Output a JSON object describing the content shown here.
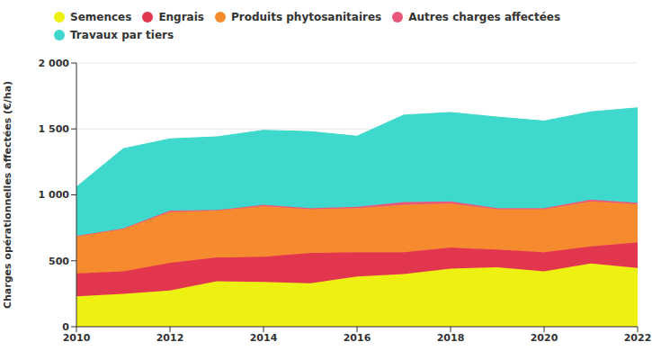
{
  "chart_data": {
    "type": "area",
    "stacked": true,
    "legend": "top",
    "grid": true,
    "y_label": "Charges opérationnelles affectées (€/ha)",
    "x": [
      2010,
      2011,
      2012,
      2013,
      2014,
      2015,
      2016,
      2017,
      2018,
      2019,
      2020,
      2021,
      2022
    ],
    "xlim": [
      2010,
      2022
    ],
    "xticks": [
      2010,
      2012,
      2014,
      2016,
      2018,
      2020,
      2022
    ],
    "ylim": [
      0,
      2000
    ],
    "yticks": [
      0,
      500,
      {
        "value": 1000,
        "label": "1 000"
      },
      {
        "value": 1500,
        "label": "1 500"
      },
      {
        "value": 2000,
        "label": "2 000"
      }
    ],
    "series": [
      {
        "name": "Semences",
        "color": "#eef012",
        "values": [
          230,
          250,
          275,
          345,
          340,
          330,
          380,
          400,
          440,
          450,
          420,
          480,
          445
        ]
      },
      {
        "name": "Engrais",
        "color": "#e2364f",
        "values": [
          175,
          170,
          210,
          180,
          190,
          230,
          185,
          165,
          160,
          135,
          145,
          130,
          195
        ]
      },
      {
        "name": "Produits phytosanitaires",
        "color": "#f68a2e",
        "values": [
          280,
          320,
          385,
          355,
          385,
          330,
          335,
          360,
          335,
          305,
          325,
          340,
          290
        ]
      },
      {
        "name": "Autres charges affectées",
        "color": "#e8577c",
        "values": [
          5,
          5,
          10,
          5,
          10,
          10,
          10,
          20,
          15,
          10,
          10,
          15,
          10
        ]
      },
      {
        "name": "Travaux par tiers",
        "color": "#3fd8cc",
        "values": [
          370,
          605,
          545,
          555,
          565,
          580,
          535,
          660,
          675,
          690,
          660,
          665,
          720
        ]
      }
    ]
  }
}
